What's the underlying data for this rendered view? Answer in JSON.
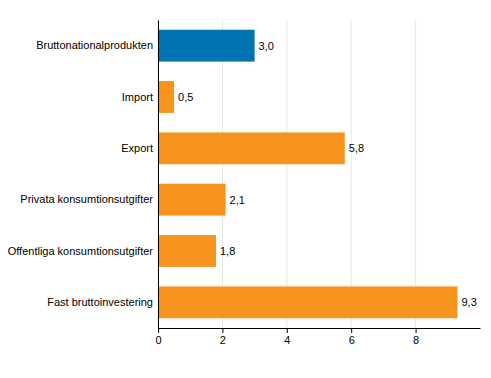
{
  "chart_data": {
    "type": "bar",
    "orientation": "horizontal",
    "categories": [
      "Bruttonationalprodukten",
      "Import",
      "Export",
      "Privata konsumtionsutgifter",
      "Offentliga konsumtionsutgifter",
      "Fast bruttoinvestering"
    ],
    "values": [
      3.0,
      0.5,
      5.8,
      2.1,
      1.8,
      9.3
    ],
    "value_labels": [
      "3,0",
      "0,5",
      "5,8",
      "2,1",
      "1,8",
      "9,3"
    ],
    "colors": [
      "#0073b0",
      "#f7941d",
      "#f7941d",
      "#f7941d",
      "#f7941d",
      "#f7941d"
    ],
    "xlim": [
      0,
      10
    ],
    "xticks": [
      0,
      2,
      4,
      6,
      8
    ],
    "grid": true,
    "data_labels": true
  }
}
